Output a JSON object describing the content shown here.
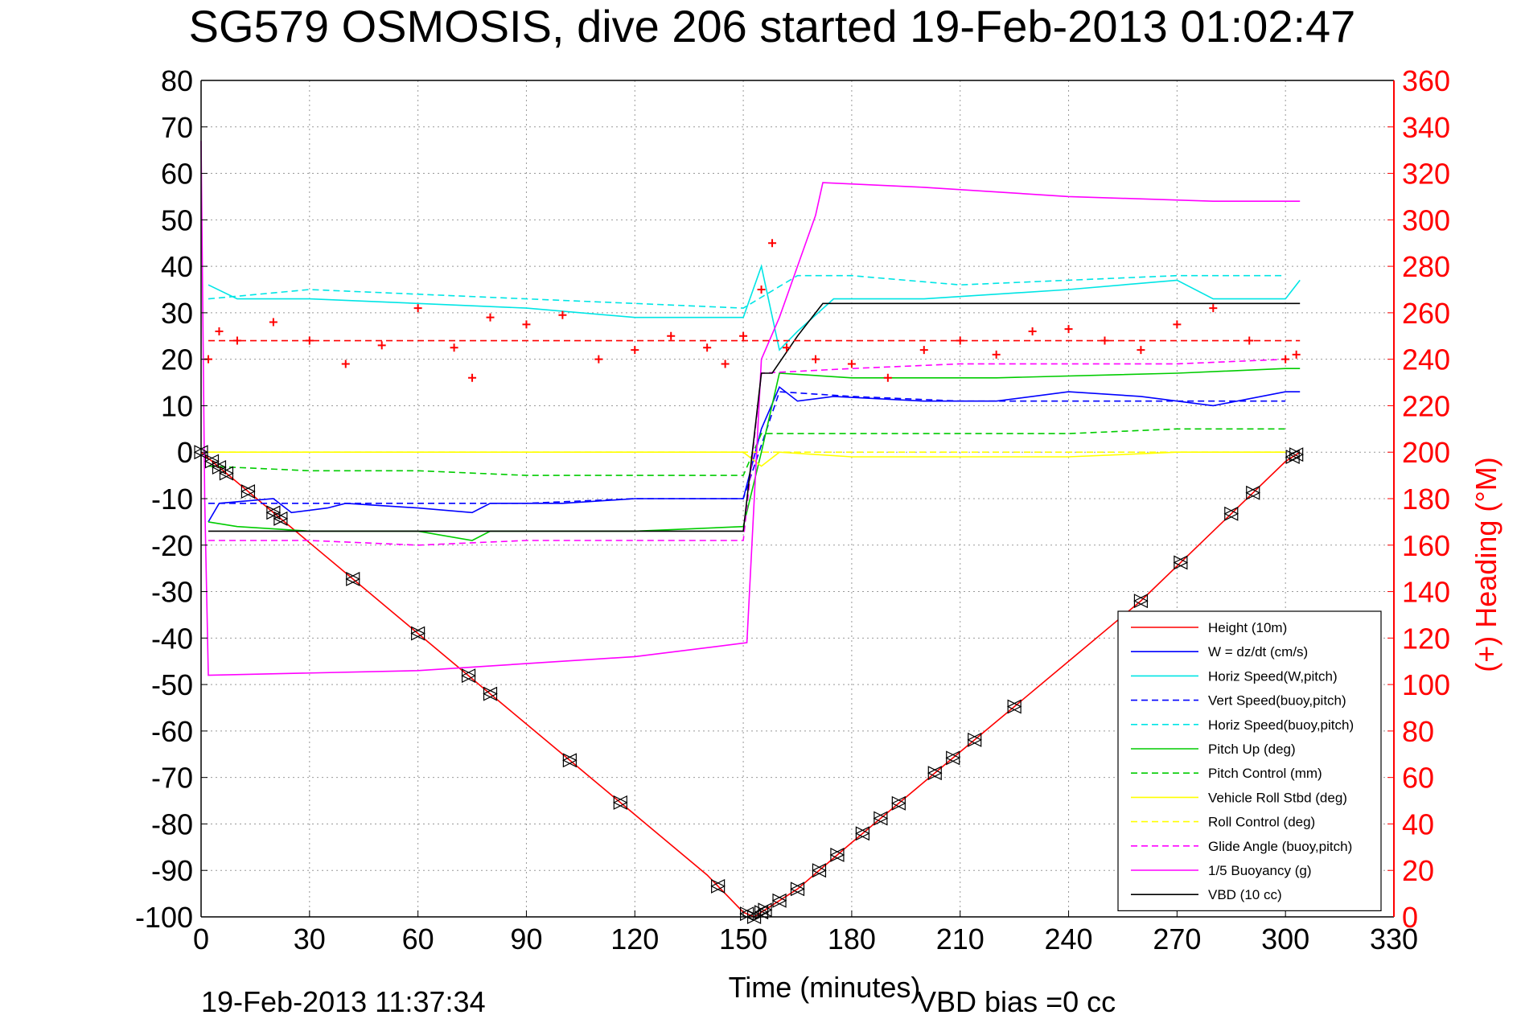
{
  "chart_data": {
    "type": "line",
    "title": "SG579 OSMOSIS, dive 206 started 19-Feb-2013 01:02:47",
    "xlabel": "Time (minutes)",
    "ylabel_right": "(+) Heading (°M)",
    "footer_left": "19-Feb-2013 11:37:34",
    "footer_right": "VBD bias =0 cc",
    "xlim": [
      0,
      330
    ],
    "ylim": [
      -100,
      80
    ],
    "ylim_right": [
      0,
      360
    ],
    "x_ticks": [
      "0",
      "30",
      "60",
      "90",
      "120",
      "150",
      "180",
      "210",
      "240",
      "270",
      "300",
      "330"
    ],
    "y_ticks": [
      "80",
      "70",
      "60",
      "50",
      "40",
      "30",
      "20",
      "10",
      "0",
      "-10",
      "-20",
      "-30",
      "-40",
      "-50",
      "-60",
      "-70",
      "-80",
      "-90",
      "-100"
    ],
    "y_ticks_right": [
      "360",
      "340",
      "320",
      "300",
      "280",
      "260",
      "240",
      "220",
      "200",
      "180",
      "160",
      "140",
      "120",
      "100",
      "80",
      "60",
      "40",
      "20",
      "0"
    ],
    "grid": true,
    "legend_position": "bottom-right",
    "colors": {
      "red": "#ff0000",
      "blue": "#0000ff",
      "cyan": "#00e5e5",
      "green": "#00cc00",
      "yellow": "#ffff00",
      "magenta": "#ff00ff",
      "black": "#000000"
    },
    "series": [
      {
        "name": "Height (10m)",
        "color": "red",
        "style": "solid",
        "x": [
          0,
          20,
          40,
          60,
          80,
          100,
          120,
          140,
          150,
          153,
          155,
          165,
          180,
          200,
          220,
          240,
          260,
          280,
          300,
          304
        ],
        "y": [
          0,
          -13,
          -26,
          -39,
          -52,
          -65,
          -78,
          -91,
          -99,
          -100,
          -99,
          -94,
          -84,
          -71,
          -58,
          -45,
          -32,
          -17,
          -2,
          0
        ]
      },
      {
        "name": "W = dz/dt (cm/s)",
        "color": "blue",
        "style": "solid",
        "x": [
          2,
          5,
          20,
          25,
          35,
          40,
          60,
          75,
          80,
          100,
          120,
          150,
          155,
          160,
          165,
          175,
          200,
          220,
          240,
          260,
          280,
          300,
          304
        ],
        "y": [
          -15,
          -11,
          -10,
          -13,
          -12,
          -11,
          -12,
          -13,
          -11,
          -11,
          -10,
          -10,
          5,
          14,
          11,
          12,
          11,
          11,
          13,
          12,
          10,
          13,
          13
        ]
      },
      {
        "name": "Horiz Speed(W,pitch)",
        "color": "cyan",
        "style": "solid",
        "x": [
          2,
          10,
          30,
          60,
          90,
          120,
          150,
          155,
          160,
          165,
          175,
          200,
          240,
          270,
          280,
          300,
          304
        ],
        "y": [
          36,
          33,
          33,
          32,
          31,
          29,
          29,
          40,
          22,
          26,
          33,
          33,
          35,
          37,
          33,
          33,
          37
        ]
      },
      {
        "name": "Vert Speed(buoy,pitch)",
        "color": "blue",
        "style": "dashed",
        "x": [
          2,
          30,
          60,
          90,
          120,
          150,
          160,
          180,
          210,
          240,
          270,
          300
        ],
        "y": [
          -11,
          -11,
          -11,
          -11,
          -10,
          -10,
          13,
          12,
          11,
          11,
          11,
          11
        ]
      },
      {
        "name": "Horiz Speed(buoy,pitch)",
        "color": "cyan",
        "style": "dashed",
        "x": [
          2,
          30,
          60,
          90,
          120,
          150,
          165,
          180,
          210,
          240,
          270,
          300
        ],
        "y": [
          33,
          35,
          34,
          33,
          32,
          31,
          38,
          38,
          36,
          37,
          38,
          38
        ]
      },
      {
        "name": "Pitch Up (deg)",
        "color": "green",
        "style": "solid",
        "x": [
          2,
          10,
          30,
          60,
          75,
          80,
          120,
          150,
          155,
          160,
          180,
          220,
          270,
          300,
          304
        ],
        "y": [
          -15,
          -16,
          -17,
          -17,
          -19,
          -17,
          -17,
          -16,
          0,
          17,
          16,
          16,
          17,
          18,
          18
        ]
      },
      {
        "name": "Pitch Control (mm)",
        "color": "green",
        "style": "dashed",
        "x": [
          2,
          30,
          60,
          90,
          120,
          150,
          155,
          180,
          210,
          240,
          270,
          300
        ],
        "y": [
          -3,
          -4,
          -4,
          -5,
          -5,
          -5,
          4,
          4,
          4,
          4,
          5,
          5
        ]
      },
      {
        "name": "Vehicle Roll Stbd (deg)",
        "color": "yellow",
        "style": "solid",
        "x": [
          2,
          20,
          40,
          60,
          80,
          100,
          120,
          150,
          155,
          160,
          180,
          210,
          240,
          270,
          300
        ],
        "y": [
          0,
          0,
          0,
          0,
          0,
          0,
          0,
          0,
          -3,
          0,
          -1,
          -1,
          -1,
          0,
          0
        ]
      },
      {
        "name": "Roll Control (deg)",
        "color": "yellow",
        "style": "dashed",
        "x": [
          2,
          60,
          120,
          150,
          160,
          210,
          270,
          300
        ],
        "y": [
          0,
          0,
          0,
          0,
          0,
          0,
          0,
          0
        ]
      },
      {
        "name": "Glide Angle (buoy,pitch)",
        "color": "magenta",
        "style": "dashed",
        "x": [
          2,
          30,
          60,
          90,
          120,
          150,
          155,
          180,
          210,
          240,
          270,
          300
        ],
        "y": [
          -19,
          -19,
          -20,
          -19,
          -19,
          -19,
          17,
          18,
          19,
          19,
          19,
          20
        ]
      },
      {
        "name": "1/5 Buoyancy (g)",
        "color": "magenta",
        "style": "solid",
        "x": [
          0,
          1,
          2,
          60,
          120,
          151,
          155,
          160,
          165,
          170,
          172,
          200,
          240,
          280,
          303,
          304
        ],
        "y": [
          67,
          -10,
          -48,
          -47,
          -44,
          -41,
          20,
          29,
          40,
          51,
          58,
          57,
          55,
          54,
          54,
          54
        ]
      },
      {
        "name": "VBD (10 cc)",
        "color": "black",
        "style": "solid",
        "x": [
          2,
          60,
          120,
          150,
          155,
          158,
          165,
          170,
          172,
          200,
          240,
          280,
          304
        ],
        "y": [
          -17,
          -17,
          -17,
          -17,
          17,
          17,
          25,
          30,
          32,
          32,
          32,
          32,
          32
        ]
      },
      {
        "name": "(+) Heading (°M)",
        "color": "red",
        "style": "markers",
        "axis": "right",
        "x": [
          2,
          5,
          10,
          20,
          30,
          40,
          50,
          60,
          70,
          75,
          80,
          90,
          100,
          110,
          120,
          130,
          140,
          145,
          150,
          155,
          158,
          162,
          170,
          180,
          190,
          200,
          210,
          220,
          230,
          240,
          250,
          260,
          270,
          280,
          290,
          300,
          303
        ],
        "y": [
          240,
          252,
          248,
          256,
          248,
          238,
          246,
          262,
          245,
          232,
          258,
          255,
          259,
          240,
          244,
          250,
          245,
          238,
          250,
          270,
          290,
          245,
          240,
          238,
          232,
          244,
          248,
          242,
          252,
          253,
          248,
          244,
          255,
          262,
          248,
          240,
          242
        ]
      },
      {
        "name": "",
        "color": "red",
        "style": "dashed",
        "axis": "right",
        "x": [
          2,
          304
        ],
        "y": [
          248,
          248
        ]
      }
    ],
    "markers_on_height": [
      0,
      3,
      5,
      7,
      13,
      20,
      22,
      42,
      60,
      74,
      80,
      102,
      116,
      143,
      151,
      153,
      155,
      156,
      160,
      165,
      171,
      176,
      183,
      188,
      193,
      203,
      208,
      214,
      225,
      260,
      271,
      285,
      291,
      302,
      303
    ]
  }
}
